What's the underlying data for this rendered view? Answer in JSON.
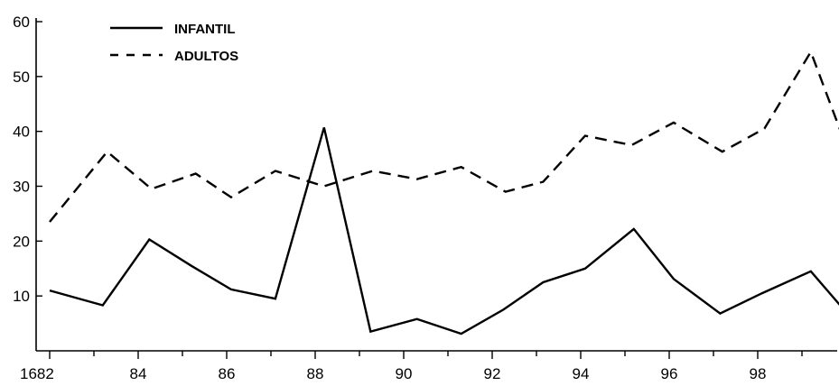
{
  "chart_data": {
    "type": "line",
    "title": "",
    "xlabel": "",
    "ylabel": "",
    "x": [
      1682,
      1683,
      1684,
      1685,
      1686,
      1687,
      1688,
      1689,
      1690,
      1691,
      1692,
      1693,
      1694,
      1695,
      1696,
      1697,
      1698,
      1699,
      1700
    ],
    "xlim": [
      1682,
      1700
    ],
    "ylim": [
      0,
      60
    ],
    "xticks": [
      1682,
      1684,
      1686,
      1688,
      1690,
      1692,
      1694,
      1696,
      1698
    ],
    "xtick_labels": [
      "1682",
      "84",
      "86",
      "88",
      "90",
      "92",
      "94",
      "96",
      "98"
    ],
    "yticks": [
      10,
      20,
      30,
      40,
      50,
      60
    ],
    "ytick_labels": [
      "10",
      "20",
      "30",
      "40",
      "50",
      "60"
    ],
    "legend_position": "top-left",
    "grid": false,
    "series": [
      {
        "name": "INFANTIL",
        "style": "solid",
        "color": "#000000",
        "x": [
          1682,
          1683.2,
          1684.25,
          1685.2,
          1686.1,
          1687.1,
          1688.2,
          1689.25,
          1690.3,
          1691.3,
          1692.25,
          1693.15,
          1694.1,
          1695.2,
          1696.1,
          1697.15,
          1698.1,
          1699.2,
          1700
        ],
        "values": [
          11,
          8.3,
          20.3,
          15.5,
          11.2,
          9.5,
          40.7,
          3.5,
          5.8,
          3.1,
          7.5,
          12.5,
          15,
          22.2,
          13.1,
          6.8,
          10.5,
          14.5,
          7
        ]
      },
      {
        "name": "ADULTOS",
        "style": "dashed",
        "color": "#000000",
        "x": [
          1682,
          1683.3,
          1684.3,
          1685.3,
          1686.1,
          1687.1,
          1688.2,
          1689.3,
          1690.3,
          1691.3,
          1692.3,
          1693.15,
          1694.1,
          1695.15,
          1696.1,
          1697.2,
          1698.15,
          1699.2,
          1700
        ],
        "values": [
          23.5,
          36.3,
          29.5,
          32.3,
          28,
          32.8,
          30,
          32.8,
          31.3,
          33.5,
          29,
          30.8,
          39.2,
          37.5,
          41.6,
          36.3,
          40.5,
          54.5,
          37.3
        ]
      }
    ]
  }
}
